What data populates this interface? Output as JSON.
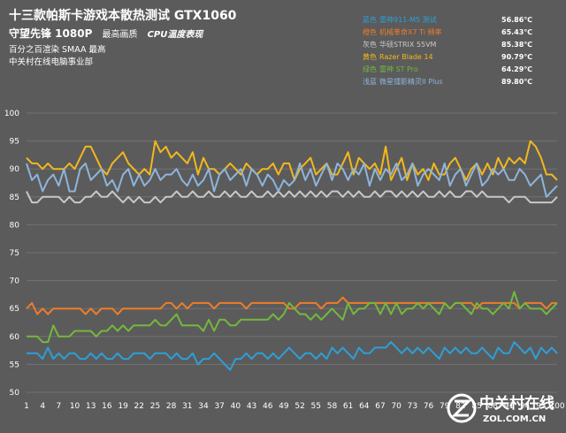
{
  "header": {
    "title": "十三款帕斯卡游戏本散热测试 GTX1060",
    "game": "守望先锋 1080P",
    "quality": "最高画质",
    "metric": "CPU温度表现",
    "settings": "百分之百渲染 SMAA 最高",
    "source": "中关村在线电脑事业部"
  },
  "watermark": {
    "brand": "中关村在线",
    "url": "ZOL.COM.CN"
  },
  "chart_data": {
    "type": "line",
    "title": "十三款帕斯卡游戏本散热测试 GTX1060",
    "ylim": [
      50,
      100
    ],
    "yticks": [
      50,
      55,
      60,
      65,
      70,
      75,
      80,
      85,
      90,
      95,
      100
    ],
    "x": [
      1,
      2,
      3,
      4,
      5,
      6,
      7,
      8,
      9,
      10,
      11,
      12,
      13,
      14,
      15,
      16,
      17,
      18,
      19,
      20,
      21,
      22,
      23,
      24,
      25,
      26,
      27,
      28,
      29,
      30,
      31,
      32,
      33,
      34,
      35,
      36,
      37,
      38,
      39,
      40,
      41,
      42,
      43,
      44,
      45,
      46,
      47,
      48,
      49,
      50,
      51,
      52,
      53,
      54,
      55,
      56,
      57,
      58,
      59,
      60,
      61,
      62,
      63,
      64,
      65,
      66,
      67,
      68,
      69,
      70,
      71,
      72,
      73,
      74,
      75,
      76,
      77,
      78,
      79,
      80,
      81,
      82,
      83,
      84,
      85,
      86,
      87,
      88,
      89,
      90,
      91,
      92,
      93,
      94,
      95,
      96,
      97,
      98,
      99,
      100
    ],
    "xtick_labels": [
      "1",
      "4",
      "7",
      "10",
      "13",
      "16",
      "19",
      "22",
      "25",
      "28",
      "31",
      "34",
      "37",
      "40",
      "43",
      "46",
      "49",
      "52",
      "55",
      "58",
      "61",
      "64",
      "67",
      "70",
      "73",
      "76",
      "79",
      "82",
      "85",
      "88",
      "91",
      "94",
      "97",
      "100"
    ],
    "grid": true,
    "series": [
      {
        "prefix": "蓝色",
        "name": "雷神911-M5 测试",
        "value_label": "56.86℃",
        "color": "#2e9fd8",
        "values": [
          57,
          57,
          57,
          56,
          58,
          56,
          57,
          56,
          57,
          57,
          56,
          56,
          57,
          56,
          57,
          56,
          56,
          57,
          56,
          56,
          57,
          57,
          57,
          56,
          57,
          57,
          57,
          56,
          57,
          56,
          56,
          57,
          55,
          56,
          56,
          57,
          56,
          55,
          54,
          56,
          56,
          57,
          56,
          57,
          57,
          56,
          57,
          56,
          57,
          58,
          57,
          56,
          57,
          57,
          56,
          57,
          56,
          58,
          57,
          58,
          57,
          56,
          58,
          57,
          57,
          58,
          58,
          58,
          59,
          58,
          57,
          58,
          57,
          58,
          57,
          58,
          57,
          56,
          58,
          57,
          58,
          57,
          58,
          57,
          57,
          58,
          57,
          56,
          58,
          57,
          57,
          59,
          58,
          57,
          58,
          56,
          58,
          57,
          58,
          57
        ]
      },
      {
        "prefix": "橙色",
        "name": "机械革命X7 Ti 频率",
        "value_label": "65.43℃",
        "color": "#f07c2a",
        "values": [
          65,
          66,
          64,
          65,
          64,
          65,
          65,
          65,
          65,
          65,
          65,
          64,
          65,
          64,
          65,
          65,
          65,
          64,
          65,
          65,
          65,
          65,
          65,
          65,
          65,
          65,
          66,
          66,
          65,
          66,
          65,
          66,
          66,
          66,
          66,
          65,
          66,
          66,
          66,
          66,
          66,
          65,
          66,
          66,
          66,
          66,
          66,
          66,
          66,
          65,
          65,
          66,
          66,
          66,
          66,
          65,
          66,
          66,
          66,
          67,
          66,
          66,
          66,
          66,
          66,
          66,
          66,
          66,
          66,
          66,
          66,
          66,
          66,
          66,
          66,
          66,
          66,
          66,
          66,
          65,
          66,
          66,
          66,
          66,
          65,
          66,
          66,
          66,
          66,
          66,
          66,
          66,
          65,
          66,
          66,
          66,
          66,
          65,
          66,
          66
        ]
      },
      {
        "prefix": "灰色",
        "name": "华硕STRIX 55VM",
        "value_label": "85.38℃",
        "color": "#c8c8c8",
        "values": [
          86,
          84,
          84,
          85,
          85,
          85,
          85,
          84,
          85,
          84,
          84,
          85,
          85,
          86,
          85,
          85,
          86,
          85,
          84,
          85,
          84,
          85,
          84,
          84,
          85,
          84,
          85,
          85,
          86,
          85,
          85,
          86,
          85,
          85,
          86,
          85,
          85,
          86,
          85,
          86,
          85,
          85,
          86,
          85,
          85,
          86,
          85,
          86,
          85,
          86,
          85,
          86,
          85,
          86,
          85,
          86,
          85,
          86,
          86,
          85,
          86,
          85,
          86,
          85,
          85,
          86,
          85,
          86,
          86,
          85,
          86,
          85,
          86,
          85,
          86,
          85,
          85,
          86,
          85,
          86,
          85,
          85,
          86,
          86,
          85,
          86,
          85,
          85,
          85,
          85,
          84,
          85,
          85,
          85,
          84,
          84,
          84,
          84,
          84,
          85
        ]
      },
      {
        "prefix": "黄色",
        "name": "Razer Blade 14",
        "value_label": "90.79℃",
        "color": "#f2b81c",
        "values": [
          92,
          91,
          91,
          90,
          91,
          90,
          90,
          90,
          91,
          90,
          92,
          94,
          94,
          92,
          90,
          89,
          91,
          92,
          93,
          91,
          90,
          89,
          90,
          89,
          95,
          93,
          94,
          92,
          93,
          92,
          91,
          93,
          89,
          92,
          90,
          90,
          89,
          90,
          91,
          90,
          89,
          91,
          90,
          89,
          90,
          90,
          91,
          89,
          91,
          91,
          88,
          90,
          91,
          92,
          89,
          90,
          91,
          89,
          89,
          91,
          93,
          89,
          92,
          91,
          90,
          91,
          89,
          94,
          88,
          90,
          92,
          88,
          91,
          89,
          90,
          88,
          91,
          89,
          89,
          91,
          92,
          90,
          88,
          90,
          91,
          89,
          91,
          89,
          92,
          90,
          92,
          91,
          92,
          91,
          95,
          94,
          92,
          89,
          89,
          88
        ]
      },
      {
        "prefix": "绿色",
        "name": "雷神 ST Pro",
        "value_label": "64.29℃",
        "color": "#74b83e",
        "values": [
          60,
          60,
          60,
          59,
          59,
          62,
          60,
          60,
          60,
          61,
          61,
          61,
          61,
          60,
          61,
          61,
          62,
          61,
          62,
          61,
          62,
          62,
          62,
          62,
          63,
          62,
          62,
          63,
          64,
          62,
          62,
          62,
          62,
          61,
          63,
          61,
          63,
          63,
          62,
          62,
          63,
          63,
          63,
          63,
          63,
          63,
          64,
          63,
          64,
          66,
          65,
          64,
          64,
          63,
          64,
          63,
          64,
          65,
          64,
          63,
          66,
          64,
          65,
          65,
          66,
          66,
          64,
          66,
          64,
          66,
          64,
          65,
          65,
          66,
          65,
          66,
          65,
          64,
          66,
          65,
          66,
          66,
          65,
          64,
          66,
          65,
          65,
          64,
          65,
          66,
          65,
          68,
          65,
          66,
          65,
          65,
          65,
          64,
          65,
          66
        ]
      },
      {
        "prefix": "浅蓝",
        "name": "微星镭影精灵II Plus",
        "value_label": "89.80℃",
        "color": "#8fb4dc",
        "values": [
          91,
          88,
          89,
          86,
          88,
          89,
          87,
          90,
          86,
          86,
          90,
          91,
          88,
          89,
          90,
          87,
          88,
          86,
          89,
          90,
          87,
          89,
          87,
          88,
          90,
          88,
          89,
          89,
          90,
          88,
          87,
          89,
          87,
          88,
          90,
          86,
          89,
          90,
          88,
          89,
          90,
          87,
          90,
          89,
          87,
          89,
          88,
          86,
          88,
          87,
          88,
          91,
          88,
          90,
          87,
          89,
          91,
          88,
          91,
          90,
          88,
          90,
          89,
          91,
          87,
          90,
          88,
          90,
          89,
          91,
          88,
          89,
          91,
          87,
          89,
          90,
          89,
          88,
          91,
          87,
          89,
          90,
          87,
          89,
          91,
          87,
          88,
          90,
          89,
          90,
          88,
          88,
          90,
          89,
          87,
          88,
          89,
          85,
          86,
          87
        ]
      }
    ]
  }
}
